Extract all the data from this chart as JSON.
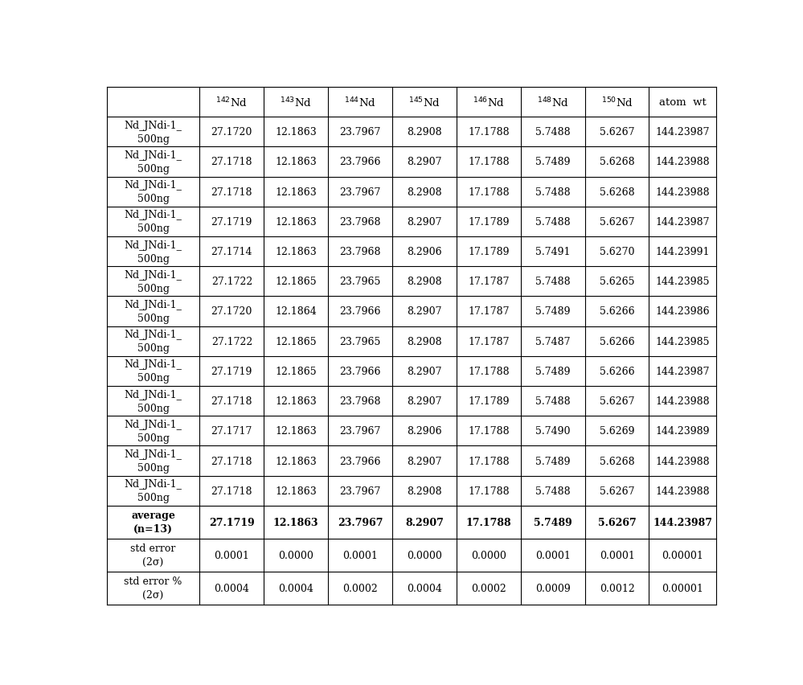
{
  "isotope_labels": [
    [
      "142",
      "Nd"
    ],
    [
      "143",
      "Nd"
    ],
    [
      "144",
      "Nd"
    ],
    [
      "145",
      "Nd"
    ],
    [
      "146",
      "Nd"
    ],
    [
      "148",
      "Nd"
    ],
    [
      "150",
      "Nd"
    ]
  ],
  "data_rows": [
    [
      "Nd_JNdi-1_\n500ng",
      "27.1720",
      "12.1863",
      "23.7967",
      "8.2908",
      "17.1788",
      "5.7488",
      "5.6267",
      "144.23987"
    ],
    [
      "Nd_JNdi-1_\n500ng",
      "27.1718",
      "12.1863",
      "23.7966",
      "8.2907",
      "17.1788",
      "5.7489",
      "5.6268",
      "144.23988"
    ],
    [
      "Nd_JNdi-1_\n500ng",
      "27.1718",
      "12.1863",
      "23.7967",
      "8.2908",
      "17.1788",
      "5.7488",
      "5.6268",
      "144.23988"
    ],
    [
      "Nd_JNdi-1_\n500ng",
      "27.1719",
      "12.1863",
      "23.7968",
      "8.2907",
      "17.1789",
      "5.7488",
      "5.6267",
      "144.23987"
    ],
    [
      "Nd_JNdi-1_\n500ng",
      "27.1714",
      "12.1863",
      "23.7968",
      "8.2906",
      "17.1789",
      "5.7491",
      "5.6270",
      "144.23991"
    ],
    [
      "Nd_JNdi-1_\n500ng",
      "27.1722",
      "12.1865",
      "23.7965",
      "8.2908",
      "17.1787",
      "5.7488",
      "5.6265",
      "144.23985"
    ],
    [
      "Nd_JNdi-1_\n500ng",
      "27.1720",
      "12.1864",
      "23.7966",
      "8.2907",
      "17.1787",
      "5.7489",
      "5.6266",
      "144.23986"
    ],
    [
      "Nd_JNdi-1_\n500ng",
      "27.1722",
      "12.1865",
      "23.7965",
      "8.2908",
      "17.1787",
      "5.7487",
      "5.6266",
      "144.23985"
    ],
    [
      "Nd_JNdi-1_\n500ng",
      "27.1719",
      "12.1865",
      "23.7966",
      "8.2907",
      "17.1788",
      "5.7489",
      "5.6266",
      "144.23987"
    ],
    [
      "Nd_JNdi-1_\n500ng",
      "27.1718",
      "12.1863",
      "23.7968",
      "8.2907",
      "17.1789",
      "5.7488",
      "5.6267",
      "144.23988"
    ],
    [
      "Nd_JNdi-1_\n500ng",
      "27.1717",
      "12.1863",
      "23.7967",
      "8.2906",
      "17.1788",
      "5.7490",
      "5.6269",
      "144.23989"
    ],
    [
      "Nd_JNdi-1_\n500ng",
      "27.1718",
      "12.1863",
      "23.7966",
      "8.2907",
      "17.1788",
      "5.7489",
      "5.6268",
      "144.23988"
    ],
    [
      "Nd_JNdi-1_\n500ng",
      "27.1718",
      "12.1863",
      "23.7967",
      "8.2908",
      "17.1788",
      "5.7488",
      "5.6267",
      "144.23988"
    ]
  ],
  "average_row": [
    "average\n(n=13)",
    "27.1719",
    "12.1863",
    "23.7967",
    "8.2907",
    "17.1788",
    "5.7489",
    "5.6267",
    "144.23987"
  ],
  "stderr_row": [
    "std error\n(2σ)",
    "0.0001",
    "0.0000",
    "0.0001",
    "0.0000",
    "0.0000",
    "0.0001",
    "0.0001",
    "0.00001"
  ],
  "stderr_pct_row": [
    "std error %\n(2σ)",
    "0.0004",
    "0.0004",
    "0.0002",
    "0.0004",
    "0.0002",
    "0.0009",
    "0.0012",
    "0.00001"
  ],
  "col_widths_rel": [
    1.45,
    1.0,
    1.0,
    1.0,
    1.0,
    1.0,
    1.0,
    1.0,
    1.05
  ],
  "bg_color": "#ffffff",
  "grid_color": "#000000",
  "text_color": "#000000",
  "font_size": 9.0,
  "header_font_size": 9.5
}
